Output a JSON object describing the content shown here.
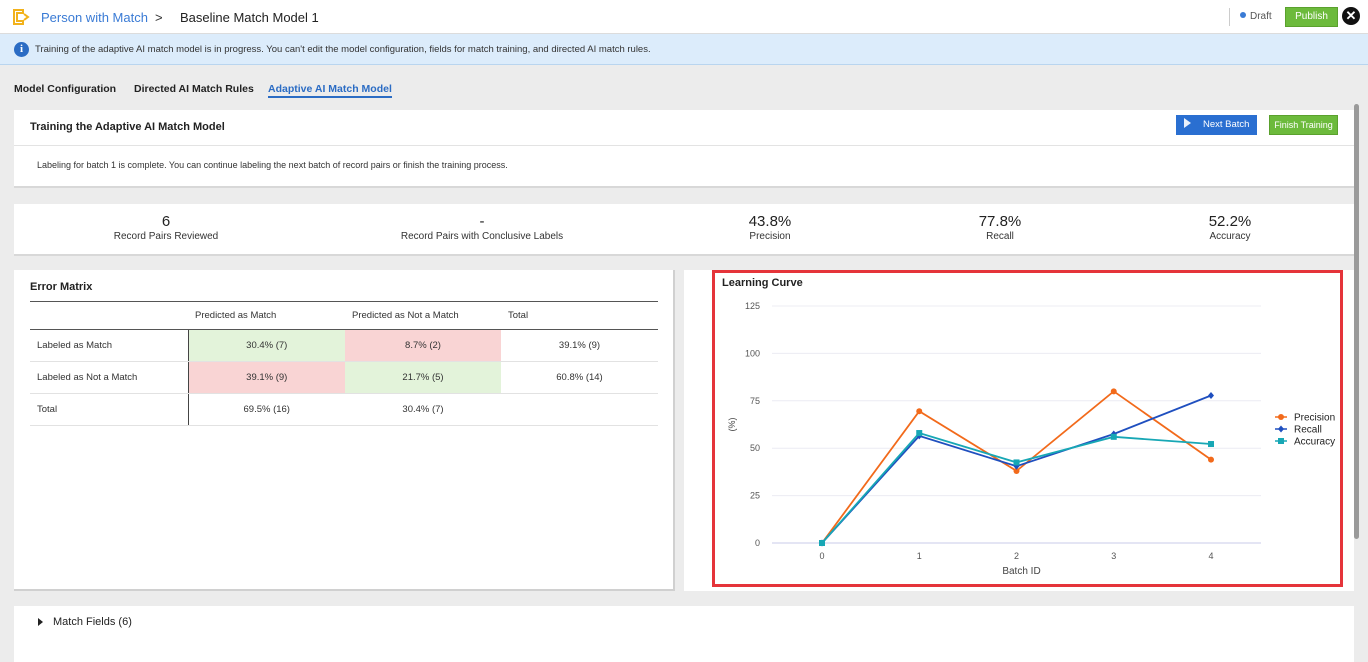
{
  "header": {
    "breadcrumb_parent": "Person with Match",
    "breadcrumb_separator": ">",
    "title": "Baseline Match Model 1",
    "status": "Draft",
    "publish_label": "Publish",
    "close_symbol": "✕",
    "logo_icon": "app-logo-icon"
  },
  "banner": {
    "icon_symbol": "i",
    "message": "Training of the adaptive AI match model is in progress. You can't edit the model configuration, fields for match training, and directed AI match rules."
  },
  "tabs": [
    {
      "label": "Model Configuration",
      "active": false
    },
    {
      "label": "Directed AI Match Rules",
      "active": false
    },
    {
      "label": "Adaptive AI Match Model",
      "active": true
    }
  ],
  "training": {
    "title": "Training the Adaptive AI Match Model",
    "message": "Labeling for batch 1 is complete. You can continue labeling the next batch of record pairs or finish the training process.",
    "next_batch_label": "Next Batch",
    "finish_label": "Finish Training"
  },
  "stats": [
    {
      "value": "6",
      "label": "Record Pairs Reviewed"
    },
    {
      "value": "-",
      "label": "Record Pairs with Conclusive Labels"
    },
    {
      "value": "43.8%",
      "label": "Precision"
    },
    {
      "value": "77.8%",
      "label": "Recall"
    },
    {
      "value": "52.2%",
      "label": "Accuracy"
    }
  ],
  "error_matrix": {
    "title": "Error Matrix",
    "headers": [
      "",
      "Predicted as Match",
      "Predicted as Not a Match",
      "Total"
    ],
    "rows": [
      {
        "label": "Labeled as Match",
        "cells": [
          "30.4% (7)",
          "8.7% (2)",
          "39.1% (9)"
        ]
      },
      {
        "label": "Labeled as Not a Match",
        "cells": [
          "39.1% (9)",
          "21.7% (5)",
          "60.8% (14)"
        ]
      },
      {
        "label": "Total",
        "cells": [
          "69.5% (16)",
          "30.4% (7)",
          ""
        ]
      }
    ],
    "colors": {
      "match": "#e3f3da",
      "mismatch": "#f9d4d4"
    }
  },
  "chart_data": {
    "type": "line",
    "title": "Learning Curve",
    "xlabel": "Batch ID",
    "ylabel": "(%)",
    "x": [
      0,
      1,
      2,
      3,
      4
    ],
    "yticks": [
      0,
      25,
      50,
      75,
      100,
      125
    ],
    "ylim": [
      0,
      125
    ],
    "grid": true,
    "legend_position": "right",
    "series": [
      {
        "name": "Precision",
        "color": "#f26a1b",
        "marker": "circle",
        "values": [
          0,
          69.5,
          38,
          80,
          44
        ]
      },
      {
        "name": "Recall",
        "color": "#1f4fbf",
        "marker": "diamond",
        "values": [
          0,
          56.5,
          40.5,
          57.5,
          77.8
        ]
      },
      {
        "name": "Accuracy",
        "color": "#17a7b5",
        "marker": "square",
        "values": [
          0,
          58,
          42.5,
          56,
          52.2
        ]
      }
    ]
  },
  "match_fields": {
    "label": "Match Fields (6)"
  },
  "accent_color": "#2b6cc4",
  "highlight_color": "#e5343a"
}
